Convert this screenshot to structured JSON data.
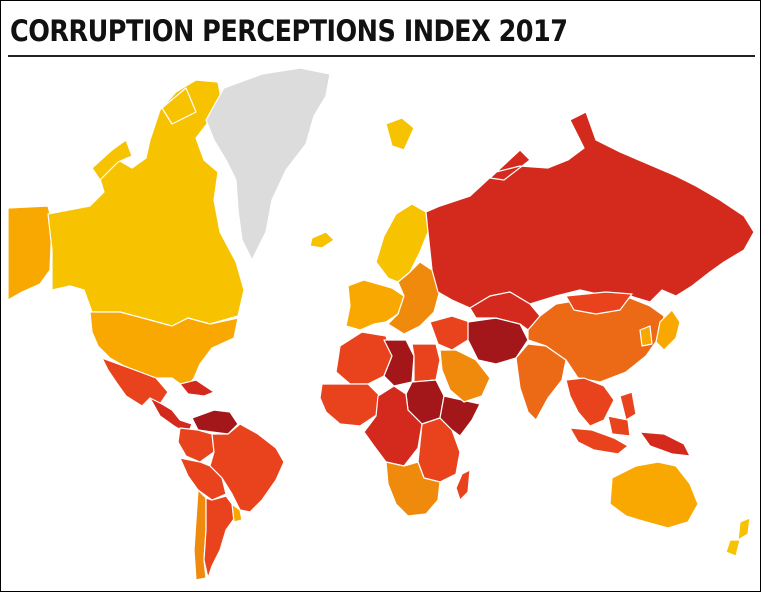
{
  "title": "CORRUPTION PERCEPTIONS INDEX 2017",
  "colors": {
    "highest": "#f7c200",
    "high": "#f8a800",
    "mid": "#f08a0c",
    "low_mid": "#ec6a16",
    "low": "#e8431c",
    "very_low": "#d42a1e",
    "lowest": "#a3161a",
    "no_data": "#dcdcdc",
    "background": "#ffffff"
  },
  "regions": [
    {
      "name": "canada",
      "color": "highest"
    },
    {
      "name": "alaska",
      "color": "high"
    },
    {
      "name": "greenland",
      "color": "no_data"
    },
    {
      "name": "usa",
      "color": "high"
    },
    {
      "name": "mexico",
      "color": "low"
    },
    {
      "name": "central-america",
      "color": "very_low"
    },
    {
      "name": "venezuela",
      "color": "lowest"
    },
    {
      "name": "colombia",
      "color": "low"
    },
    {
      "name": "brazil",
      "color": "low"
    },
    {
      "name": "peru-bolivia",
      "color": "low"
    },
    {
      "name": "chile",
      "color": "mid"
    },
    {
      "name": "argentina",
      "color": "low"
    },
    {
      "name": "uruguay",
      "color": "high"
    },
    {
      "name": "iceland",
      "color": "highest"
    },
    {
      "name": "scandinavia",
      "color": "highest"
    },
    {
      "name": "western-europe",
      "color": "high"
    },
    {
      "name": "eastern-europe",
      "color": "mid"
    },
    {
      "name": "russia",
      "color": "very_low"
    },
    {
      "name": "north-africa",
      "color": "low"
    },
    {
      "name": "libya",
      "color": "lowest"
    },
    {
      "name": "egypt",
      "color": "low"
    },
    {
      "name": "sudan",
      "color": "lowest"
    },
    {
      "name": "west-africa",
      "color": "low"
    },
    {
      "name": "central-africa",
      "color": "very_low"
    },
    {
      "name": "east-africa",
      "color": "low"
    },
    {
      "name": "horn-of-africa",
      "color": "lowest"
    },
    {
      "name": "southern-africa",
      "color": "mid"
    },
    {
      "name": "madagascar",
      "color": "low"
    },
    {
      "name": "middle-east",
      "color": "low"
    },
    {
      "name": "arabian-peninsula",
      "color": "mid"
    },
    {
      "name": "iran-afghanistan",
      "color": "lowest"
    },
    {
      "name": "central-asia",
      "color": "very_low"
    },
    {
      "name": "india",
      "color": "low_mid"
    },
    {
      "name": "china",
      "color": "low_mid"
    },
    {
      "name": "mongolia",
      "color": "low"
    },
    {
      "name": "korea-japan",
      "color": "high"
    },
    {
      "name": "southeast-asia",
      "color": "low"
    },
    {
      "name": "indonesia",
      "color": "low"
    },
    {
      "name": "papua",
      "color": "very_low"
    },
    {
      "name": "australia",
      "color": "high"
    },
    {
      "name": "new-zealand",
      "color": "highest"
    }
  ]
}
